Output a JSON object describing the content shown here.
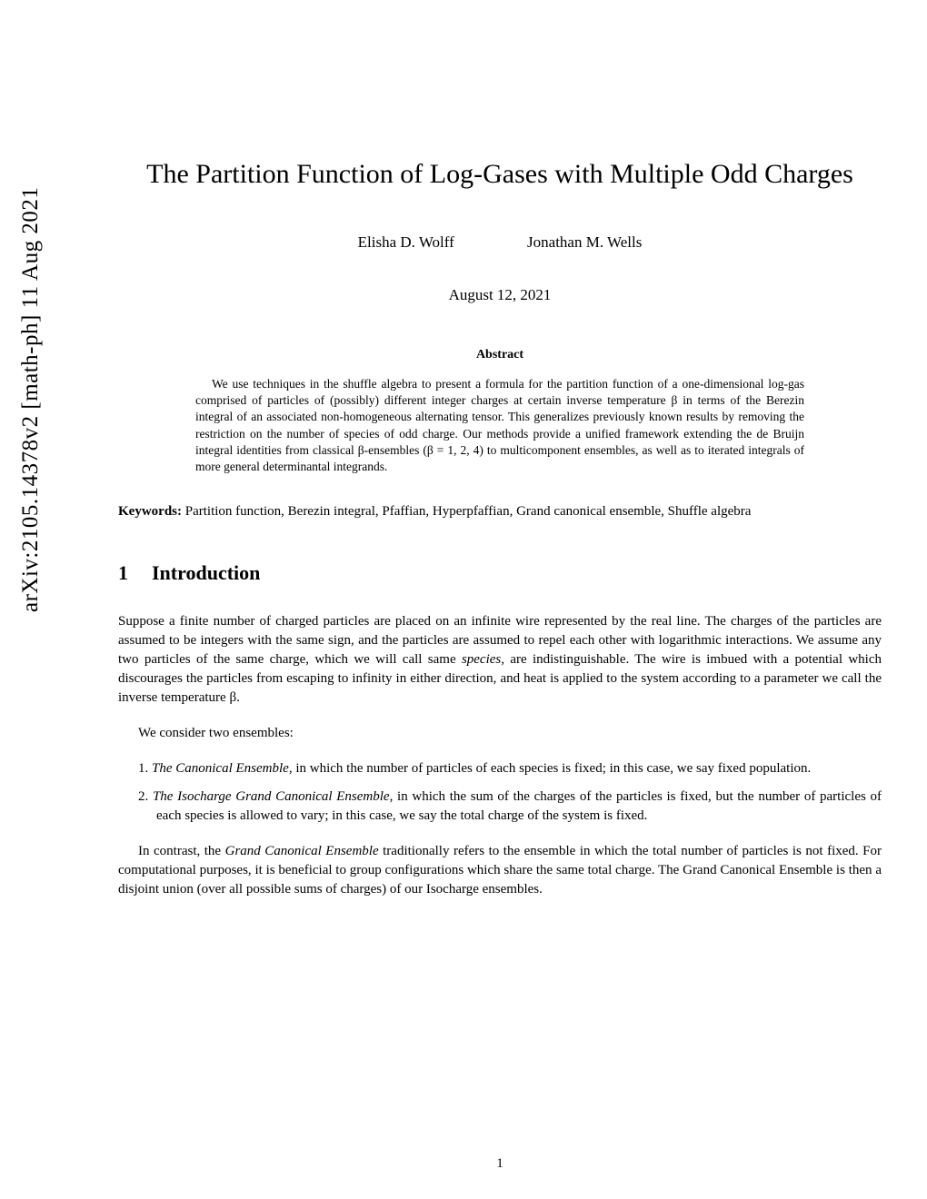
{
  "arxiv": {
    "text": "arXiv:2105.14378v2  [math-ph]  11 Aug 2021"
  },
  "title": "The Partition Function of Log-Gases with Multiple Odd Charges",
  "authors": {
    "a1": "Elisha D. Wolff",
    "a2": "Jonathan M. Wells"
  },
  "date": "August 12, 2021",
  "abstract": {
    "heading": "Abstract",
    "body": "We use techniques in the shuffle algebra to present a formula for the partition function of a one-dimensional log-gas comprised of particles of (possibly) different integer charges at certain inverse temperature β in terms of the Berezin integral of an associated non-homogeneous alternating tensor. This generalizes previously known results by removing the restriction on the number of species of odd charge. Our methods provide a unified framework extending the de Bruijn integral identities from classical β-ensembles (β = 1, 2, 4) to multicomponent ensembles, as well as to iterated integrals of more general determinantal integrands."
  },
  "keywords": {
    "label": "Keywords:",
    "list": " Partition function, Berezin integral, Pfaffian, Hyperpfaffian, Grand canonical ensemble, Shuffle algebra"
  },
  "section": {
    "number": "1",
    "title": "Introduction"
  },
  "intro": {
    "p1a": "Suppose a finite number of charged particles are placed on an infinite wire represented by the real line. The charges of the particles are assumed to be integers with the same sign, and the particles are assumed to repel each other with logarithmic interactions. We assume any two particles of the same charge, which we will call same ",
    "p1_species": "species",
    "p1b": ", are indistinguishable. The wire is imbued with a potential which discourages the particles from escaping to infinity in either direction, and heat is applied to the system according to a parameter we call the inverse temperature β.",
    "p2": "We consider two ensembles:",
    "li1_em": "The Canonical Ensemble",
    "li1_rest": ", in which the number of particles of each species is fixed; in this case, we say fixed population.",
    "li2_em": "The Isocharge Grand Canonical Ensemble",
    "li2_rest": ", in which the sum of the charges of the particles is fixed, but the number of particles of each species is allowed to vary; in this case, we say the total charge of the system is fixed.",
    "p3a": "In contrast, the ",
    "p3_em": "Grand Canonical Ensemble",
    "p3b": " traditionally refers to the ensemble in which the total number of particles is not fixed. For computational purposes, it is beneficial to group configurations which share the same total charge. The Grand Canonical Ensemble is then a disjoint union (over all possible sums of charges) of our Isocharge ensembles."
  },
  "pagenum": "1"
}
